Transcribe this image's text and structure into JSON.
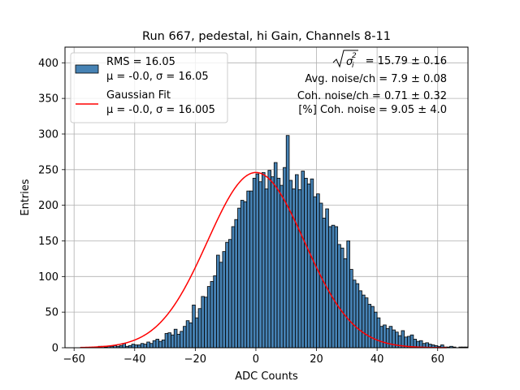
{
  "chart_data": {
    "type": "bar",
    "title": "Run 667, pedestal, hi Gain, Channels 8-11",
    "xlabel": "ADC Counts",
    "ylabel": "Entries",
    "xlim": [
      -63,
      70
    ],
    "ylim": [
      0,
      422
    ],
    "grid": true,
    "xticks": [
      -60,
      -40,
      -20,
      0,
      20,
      40,
      60
    ],
    "xtick_labels": [
      "−60",
      "−40",
      "−20",
      "0",
      "20",
      "40",
      "60"
    ],
    "yticks": [
      0,
      50,
      100,
      150,
      200,
      250,
      300,
      350,
      400
    ],
    "ytick_labels": [
      "0",
      "50",
      "100",
      "150",
      "200",
      "250",
      "300",
      "350",
      "400"
    ],
    "histogram": {
      "name": "RMS = 16.05",
      "stats": "μ = -0.0, σ = 16.05",
      "color": "#4682b4",
      "edgecolor": "#000000",
      "bin_start": -58,
      "bin_width": 1,
      "values": [
        0,
        0,
        0,
        0,
        0,
        1,
        2,
        2,
        1,
        2,
        2,
        3,
        2,
        3,
        6,
        2,
        3,
        5,
        4,
        4,
        6,
        5,
        8,
        6,
        10,
        12,
        9,
        11,
        20,
        21,
        18,
        26,
        19,
        23,
        30,
        38,
        35,
        60,
        42,
        55,
        72,
        71,
        86,
        93,
        101,
        130,
        120,
        135,
        148,
        152,
        170,
        180,
        196,
        207,
        205,
        220,
        220,
        238,
        244,
        233,
        246,
        223,
        249,
        240,
        260,
        238,
        228,
        253,
        298,
        235,
        223,
        243,
        222,
        248,
        238,
        230,
        237,
        212,
        216,
        203,
        182,
        195,
        170,
        172,
        170,
        145,
        140,
        125,
        150,
        110,
        95,
        90,
        80,
        74,
        70,
        61,
        58,
        50,
        42,
        30,
        32,
        27,
        30,
        25,
        22,
        17,
        24,
        15,
        16,
        18,
        12,
        9,
        10,
        6,
        7,
        5,
        4,
        3,
        2,
        4,
        1,
        1,
        2,
        1,
        0,
        1,
        1,
        1
      ]
    },
    "fit": {
      "name": "Gaussian Fit",
      "stats": "μ = -0.0, σ = 16.005",
      "color": "#ff0000",
      "mu": 0.0,
      "sigma": 16.005,
      "amplitude": 246,
      "x_range": [
        -58,
        63
      ]
    },
    "legend_location": "upper-left",
    "annotations": {
      "sigma_prefix": "= 15.79 ± 0.16",
      "avg_noise": "Avg. noise/ch = 7.9 ± 0.08",
      "coh_noise": "Coh. noise/ch = 0.71 ± 0.32",
      "coh_noise_pct": "[%] Coh. noise = 9.05 ± 4.0"
    }
  }
}
